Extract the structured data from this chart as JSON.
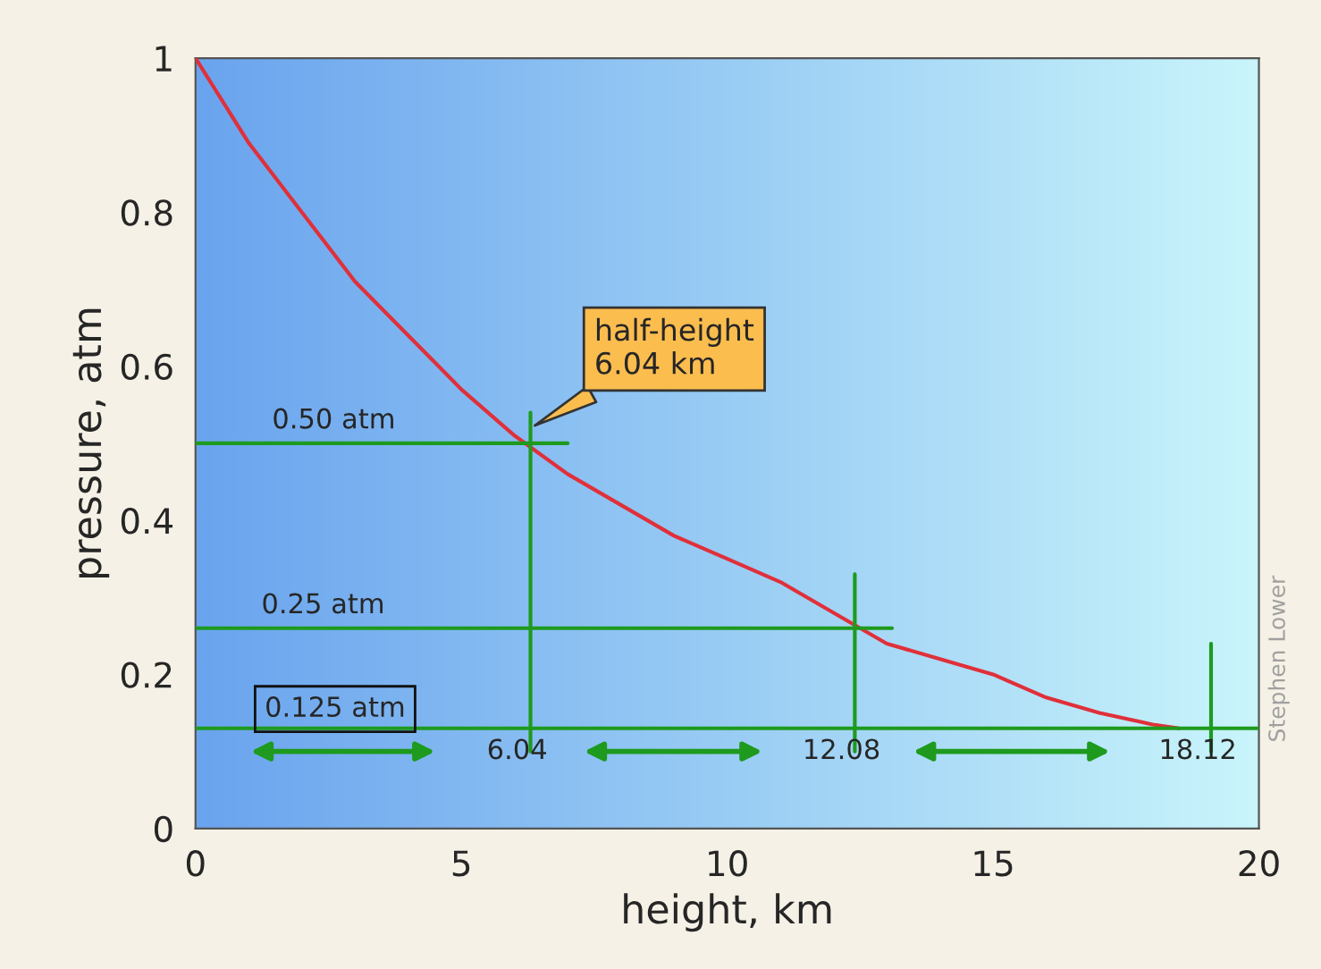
{
  "chart_data": {
    "type": "line",
    "xlabel": "height, km",
    "ylabel": "pressure, atm",
    "xlim": [
      0,
      20
    ],
    "ylim": [
      0,
      1
    ],
    "xticks": [
      0,
      5,
      10,
      15,
      20
    ],
    "yticks": [
      0,
      0.2,
      0.4,
      0.6,
      0.8,
      1
    ],
    "grid": false,
    "series": [
      {
        "color": "#e0303a",
        "x": [
          0,
          1,
          2,
          3,
          4,
          5,
          6,
          7,
          8,
          9,
          10,
          11,
          12,
          13,
          14,
          15,
          16,
          17,
          18,
          18.5
        ],
        "values": [
          1.0,
          0.89,
          0.8,
          0.71,
          0.64,
          0.57,
          0.51,
          0.46,
          0.42,
          0.38,
          0.35,
          0.32,
          0.28,
          0.24,
          0.22,
          0.2,
          0.17,
          0.15,
          0.135,
          0.13
        ]
      },
      {
        "color": "#1e9a1e",
        "x": [
          0,
          7.0
        ],
        "values": [
          0.5,
          0.5
        ]
      },
      {
        "color": "#1e9a1e",
        "x": [
          0,
          13.1
        ],
        "values": [
          0.26,
          0.26
        ]
      },
      {
        "color": "#1e9a1e",
        "x": [
          0,
          20
        ],
        "values": [
          0.13,
          0.13
        ]
      },
      {
        "color": "#1e9a1e",
        "x": [
          6.3,
          6.3
        ],
        "values": [
          0.1,
          0.54
        ]
      },
      {
        "color": "#1e9a1e",
        "x": [
          12.4,
          12.4
        ],
        "values": [
          0.1,
          0.33
        ]
      },
      {
        "color": "#1e9a1e",
        "x": [
          19.1,
          19.1
        ],
        "values": [
          0.1,
          0.24
        ]
      }
    ],
    "annotations": [
      {
        "text": "0.50 atm",
        "x": 2.6,
        "y": 0.5
      },
      {
        "text": "0.25 atm",
        "x": 2.4,
        "y": 0.26
      },
      {
        "text": "0.125 atm",
        "x": 1.0,
        "y": 0.13
      },
      {
        "text": "6.04",
        "x": 6.3,
        "y": 0.1
      },
      {
        "text": "12.08",
        "x": 12.4,
        "y": 0.1
      },
      {
        "text": "18.12",
        "x": 19.1,
        "y": 0.1
      },
      {
        "text": "half-height\n6.04 km",
        "x": 6.3,
        "y": 0.52
      },
      "Stephen Lower"
    ]
  }
}
